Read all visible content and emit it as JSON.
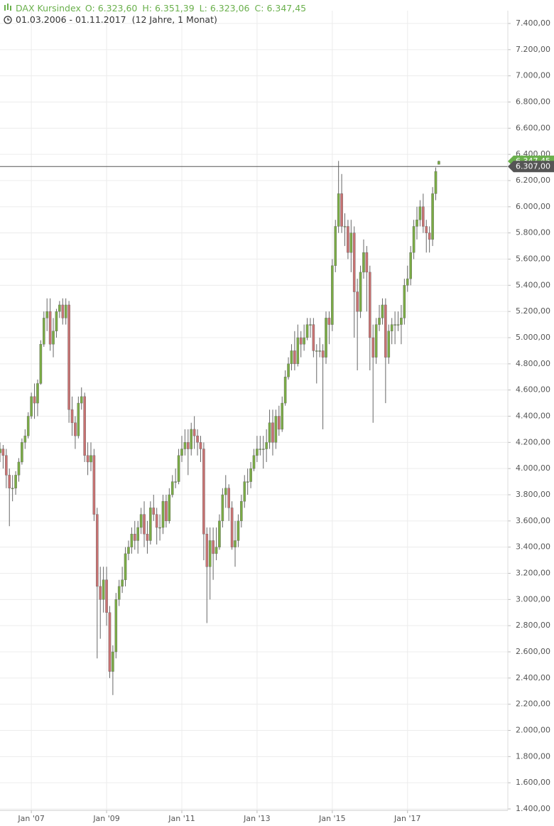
{
  "chart_data": {
    "type": "candlestick",
    "title": "DAX Kursindex",
    "quote": [
      [
        "O:",
        "6.323,60"
      ],
      [
        "H:",
        "6.351,39"
      ],
      [
        "L:",
        "6.323,06"
      ],
      [
        "C:",
        "6.347,45"
      ]
    ],
    "date_range": "01.03.2006 - 01.11.2017",
    "duration": "(12 Jahre, 1 Monat)",
    "up_color": "#7aab45",
    "down_color": "#c87272",
    "wick_color": "#666666",
    "grid": true,
    "ylim": [
      1400,
      7400
    ],
    "yticks": [
      {
        "value": 1400,
        "label": "1.400,00"
      },
      {
        "value": 1600,
        "label": "1.600,00"
      },
      {
        "value": 1800,
        "label": "1.800,00"
      },
      {
        "value": 2000,
        "label": "2.000,00"
      },
      {
        "value": 2200,
        "label": "2.200,00"
      },
      {
        "value": 2400,
        "label": "2.400,00"
      },
      {
        "value": 2600,
        "label": "2.600,00"
      },
      {
        "value": 2800,
        "label": "2.800,00"
      },
      {
        "value": 3000,
        "label": "3.000,00"
      },
      {
        "value": 3200,
        "label": "3.200,00"
      },
      {
        "value": 3400,
        "label": "3.400,00"
      },
      {
        "value": 3600,
        "label": "3.600,00"
      },
      {
        "value": 3800,
        "label": "3.800,00"
      },
      {
        "value": 4000,
        "label": "4.000,00"
      },
      {
        "value": 4200,
        "label": "4.200,00"
      },
      {
        "value": 4400,
        "label": "4.400,00"
      },
      {
        "value": 4600,
        "label": "4.600,00"
      },
      {
        "value": 4800,
        "label": "4.800,00"
      },
      {
        "value": 5000,
        "label": "5.000,00"
      },
      {
        "value": 5200,
        "label": "5.200,00"
      },
      {
        "value": 5400,
        "label": "5.400,00"
      },
      {
        "value": 5600,
        "label": "5.600,00"
      },
      {
        "value": 5800,
        "label": "5.800,00"
      },
      {
        "value": 6000,
        "label": "6.000,00"
      },
      {
        "value": 6200,
        "label": "6.200,00"
      },
      {
        "value": 6400,
        "label": "6.400,00"
      },
      {
        "value": 6600,
        "label": "6.600,00"
      },
      {
        "value": 6800,
        "label": "6.800,00"
      },
      {
        "value": 7000,
        "label": "7.000,00"
      },
      {
        "value": 7200,
        "label": "7.200,00"
      },
      {
        "value": 7400,
        "label": "7.400,00"
      }
    ],
    "xlim": [
      0,
      162
    ],
    "xticks": [
      {
        "value": 10,
        "label": "Jan '07"
      },
      {
        "value": 34,
        "label": "Jan '09"
      },
      {
        "value": 58,
        "label": "Jan '11"
      },
      {
        "value": 82,
        "label": "Jan '13"
      },
      {
        "value": 106,
        "label": "Jan '15"
      },
      {
        "value": 130,
        "label": "Jan '17"
      }
    ],
    "price_line": {
      "value": 6307,
      "label": "6.307,00",
      "color": "#555555"
    },
    "last_label": {
      "value": 6347.45,
      "label": "6.347,45",
      "color": "#6ab04c"
    },
    "open": [
      4120,
      4150,
      4100,
      3950,
      3850,
      3850,
      3950,
      4050,
      4200,
      4250,
      4400,
      4550,
      4500,
      4650,
      4950,
      5150,
      5200,
      4950,
      5050,
      5200,
      5250,
      5150,
      5250,
      4450,
      4350,
      4250,
      4500,
      4550,
      4100,
      4050,
      4100,
      3650,
      3100,
      3000,
      3150,
      2900,
      2450,
      2600,
      3000,
      3100,
      3150,
      3350,
      3400,
      3500,
      3450,
      3550,
      3650,
      3500,
      3450,
      3700,
      3650,
      3550,
      3550,
      3750,
      3600,
      3800,
      3900,
      3900,
      4100,
      4150,
      4200,
      4150,
      4300,
      4250,
      4200,
      4150,
      3500,
      3250,
      3450,
      3350,
      3400,
      3600,
      3800,
      3850,
      3700,
      3400,
      3450,
      3600,
      3750,
      3900,
      3900,
      4000,
      4100,
      4150,
      4150,
      4150,
      4200,
      4350,
      4200,
      4400,
      4300,
      4500,
      4700,
      4800,
      4900,
      4800,
      5000,
      4950,
      5000,
      5100,
      5100,
      4900,
      4900,
      4900,
      4850,
      5150,
      5100,
      5550,
      5850,
      6100,
      5850,
      5850,
      5650,
      5800,
      5350,
      5200,
      5500,
      5650,
      5500,
      5000,
      4850,
      5100,
      5150,
      5250,
      4850,
      5050,
      5100,
      5100,
      5100,
      5150,
      5400,
      5450,
      5650,
      5850,
      5900,
      6000,
      5850,
      5800,
      5750,
      6100,
      6323.6
    ],
    "high": [
      4200,
      4180,
      4150,
      4000,
      3950,
      3980,
      4080,
      4230,
      4300,
      4430,
      4580,
      4650,
      4680,
      4980,
      5200,
      5300,
      5300,
      5150,
      5220,
      5280,
      5300,
      5300,
      5280,
      4550,
      4400,
      4550,
      4620,
      4580,
      4200,
      4200,
      4150,
      3700,
      3250,
      3250,
      3250,
      2950,
      2650,
      3050,
      3150,
      3250,
      3400,
      3450,
      3550,
      3600,
      3600,
      3700,
      3750,
      3600,
      3750,
      3800,
      3700,
      3650,
      3800,
      3800,
      3850,
      3950,
      4000,
      4150,
      4250,
      4300,
      4300,
      4350,
      4400,
      4300,
      4250,
      4200,
      3550,
      3550,
      3550,
      3550,
      3650,
      3850,
      3950,
      3880,
      3750,
      3600,
      3650,
      3800,
      3950,
      4000,
      4050,
      4150,
      4250,
      4250,
      4250,
      4300,
      4450,
      4450,
      4450,
      4480,
      4550,
      4750,
      4850,
      4950,
      5050,
      5100,
      5050,
      5100,
      5150,
      5150,
      5150,
      4950,
      5000,
      4950,
      5200,
      5200,
      5600,
      5900,
      6350,
      6250,
      5950,
      5900,
      5900,
      5850,
      5450,
      5550,
      5750,
      5700,
      5550,
      5100,
      5150,
      5250,
      5300,
      5300,
      5100,
      5150,
      5200,
      5200,
      5250,
      5450,
      5550,
      5700,
      5900,
      6000,
      6050,
      6100,
      5900,
      5850,
      6150,
      6300,
      6351.39
    ],
    "low": [
      4050,
      4000,
      3850,
      3560,
      3750,
      3800,
      3900,
      4030,
      4150,
      4230,
      4380,
      4380,
      4400,
      4640,
      4930,
      5050,
      4900,
      4850,
      5000,
      5150,
      5100,
      5100,
      4350,
      4250,
      4150,
      4230,
      4450,
      4050,
      3950,
      3980,
      3600,
      2550,
      2700,
      2900,
      2800,
      2400,
      2270,
      2550,
      2950,
      3050,
      3100,
      3300,
      3350,
      3380,
      3350,
      3500,
      3400,
      3350,
      3420,
      3600,
      3420,
      3450,
      3500,
      3550,
      3580,
      3780,
      3850,
      3880,
      4050,
      4100,
      3950,
      4100,
      4150,
      4100,
      4050,
      3300,
      2820,
      3000,
      3150,
      3300,
      3380,
      3550,
      3700,
      3600,
      3380,
      3250,
      3400,
      3550,
      3700,
      3800,
      3850,
      3980,
      4050,
      4100,
      4000,
      4050,
      4150,
      4100,
      4150,
      4250,
      4280,
      4480,
      4680,
      4750,
      4750,
      4780,
      4850,
      4900,
      4980,
      5000,
      4850,
      4650,
      4850,
      4300,
      4800,
      4950,
      5050,
      5500,
      5800,
      5800,
      5700,
      5600,
      5500,
      5000,
      4750,
      5150,
      5450,
      5200,
      4750,
      4350,
      4800,
      5050,
      5100,
      4500,
      4800,
      4950,
      4950,
      5050,
      4950,
      5100,
      5350,
      5400,
      5600,
      5750,
      5850,
      5800,
      5650,
      5650,
      5700,
      6050,
      6323.06
    ],
    "close": [
      4150,
      4100,
      3950,
      3850,
      3850,
      3950,
      4050,
      4200,
      4250,
      4400,
      4550,
      4500,
      4650,
      4950,
      5150,
      5200,
      4950,
      5050,
      5200,
      5250,
      5150,
      5250,
      4450,
      4350,
      4250,
      4500,
      4550,
      4100,
      4050,
      4100,
      3650,
      3100,
      3000,
      3150,
      2900,
      2450,
      2600,
      3000,
      3100,
      3150,
      3350,
      3400,
      3500,
      3450,
      3550,
      3650,
      3500,
      3450,
      3700,
      3650,
      3550,
      3550,
      3750,
      3600,
      3800,
      3900,
      3900,
      4100,
      4150,
      4200,
      4150,
      4300,
      4250,
      4200,
      4150,
      3500,
      3250,
      3450,
      3350,
      3400,
      3600,
      3800,
      3850,
      3700,
      3400,
      3450,
      3600,
      3750,
      3900,
      3900,
      4000,
      4100,
      4150,
      4150,
      4150,
      4200,
      4350,
      4200,
      4400,
      4300,
      4500,
      4700,
      4800,
      4900,
      4800,
      5000,
      4950,
      5000,
      5100,
      5100,
      4900,
      4900,
      4900,
      4850,
      5150,
      5100,
      5550,
      5850,
      6100,
      5850,
      5850,
      5650,
      5800,
      5350,
      5200,
      5500,
      5650,
      5500,
      5000,
      4850,
      5100,
      5150,
      5250,
      4850,
      5050,
      5100,
      5100,
      5100,
      5150,
      5400,
      5450,
      5650,
      5850,
      5900,
      6000,
      5850,
      5800,
      5750,
      6100,
      6270,
      6347.45
    ]
  }
}
